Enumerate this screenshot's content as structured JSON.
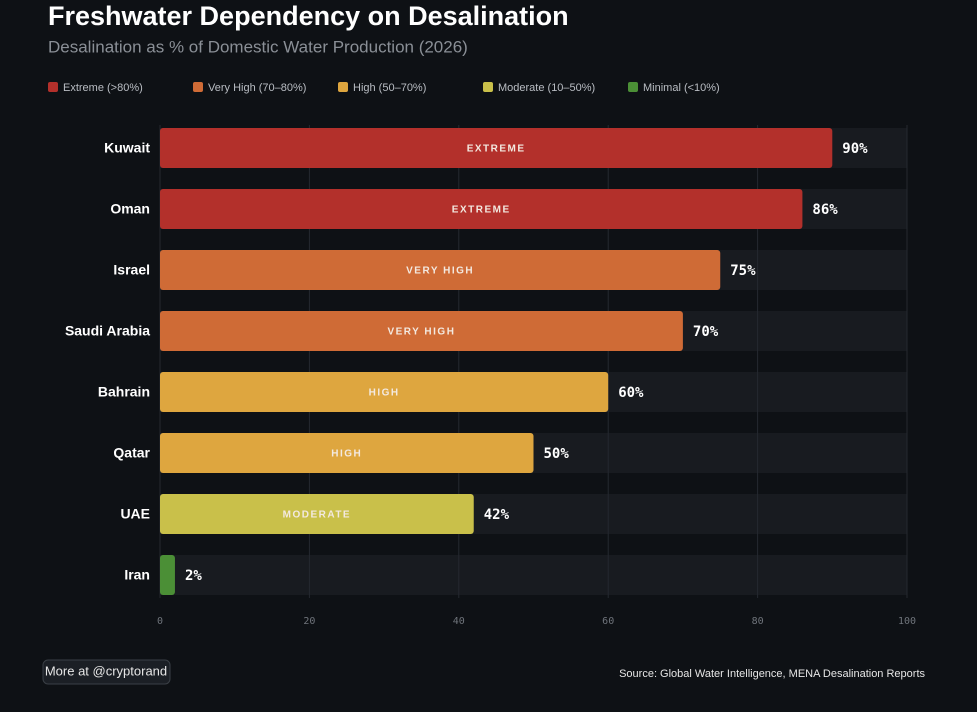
{
  "chart_data": {
    "type": "bar",
    "orientation": "horizontal",
    "title": "Freshwater Dependency on Desalination",
    "subtitle": "Desalination as % of Domestic Water Production (2026)",
    "legend": [
      {
        "name": "Extreme (>80%)",
        "color": "#b3302b"
      },
      {
        "name": "Very High (70–80%)",
        "color": "#cf6b36"
      },
      {
        "name": "High (50–70%)",
        "color": "#dea63f"
      },
      {
        "name": "Moderate (10–50%)",
        "color": "#c9c04a"
      },
      {
        "name": "Minimal (<10%)",
        "color": "#4b8f36"
      }
    ],
    "categories": [
      "Kuwait",
      "Oman",
      "Israel",
      "Saudi Arabia",
      "Bahrain",
      "Qatar",
      "UAE",
      "Iran"
    ],
    "values": [
      90,
      86,
      75,
      70,
      60,
      50,
      42,
      2
    ],
    "value_labels": [
      "90%",
      "86%",
      "75%",
      "70%",
      "60%",
      "50%",
      "42%",
      "2%"
    ],
    "bar_labels": [
      "EXTREME",
      "EXTREME",
      "VERY HIGH",
      "VERY HIGH",
      "HIGH",
      "HIGH",
      "MODERATE",
      null
    ],
    "colors": [
      "#b3302b",
      "#b3302b",
      "#cf6b36",
      "#cf6b36",
      "#dea63f",
      "#dea63f",
      "#c9c04a",
      "#4b8f36"
    ],
    "xlim": [
      0,
      100
    ],
    "xticks": [
      0,
      20,
      40,
      60,
      80,
      100
    ],
    "grid": true,
    "footer_left": "More at @cryptorand",
    "source": "Source: Global Water Intelligence, MENA Desalination Reports"
  }
}
